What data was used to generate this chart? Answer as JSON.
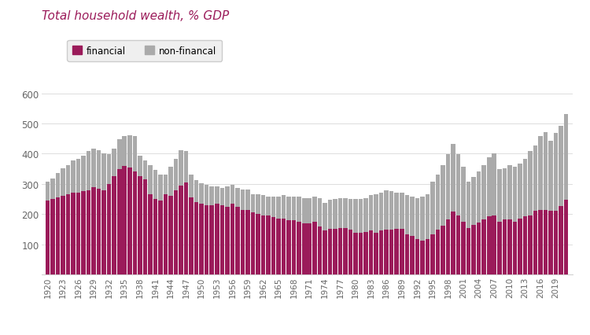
{
  "title": "Total household wealth, % GDP",
  "financial_color": "#9B1B5A",
  "nonfinancial_color": "#AAAAAA",
  "financial_label": "financial",
  "nonfinancial_label": "non-financal",
  "years": [
    1920,
    1921,
    1922,
    1923,
    1924,
    1925,
    1926,
    1927,
    1928,
    1929,
    1930,
    1931,
    1932,
    1933,
    1934,
    1935,
    1936,
    1937,
    1938,
    1939,
    1940,
    1941,
    1942,
    1943,
    1944,
    1945,
    1946,
    1947,
    1948,
    1949,
    1950,
    1951,
    1952,
    1953,
    1954,
    1955,
    1956,
    1957,
    1958,
    1959,
    1960,
    1961,
    1962,
    1963,
    1964,
    1965,
    1966,
    1967,
    1968,
    1969,
    1970,
    1971,
    1972,
    1973,
    1974,
    1975,
    1976,
    1977,
    1978,
    1979,
    1980,
    1981,
    1982,
    1983,
    1984,
    1985,
    1986,
    1987,
    1988,
    1989,
    1990,
    1991,
    1992,
    1993,
    1994,
    1995,
    1996,
    1997,
    1998,
    1999,
    2000,
    2001,
    2002,
    2003,
    2004,
    2005,
    2006,
    2007,
    2008,
    2009,
    2010,
    2011,
    2012,
    2013,
    2014,
    2015,
    2016,
    2017,
    2018,
    2019,
    2020,
    2021
  ],
  "financial": [
    245,
    250,
    255,
    260,
    265,
    270,
    270,
    275,
    280,
    290,
    285,
    280,
    300,
    325,
    350,
    360,
    355,
    340,
    325,
    315,
    265,
    250,
    245,
    265,
    260,
    280,
    295,
    305,
    255,
    240,
    235,
    230,
    230,
    235,
    230,
    225,
    235,
    225,
    215,
    215,
    205,
    200,
    195,
    195,
    190,
    185,
    185,
    180,
    180,
    175,
    170,
    170,
    175,
    160,
    145,
    150,
    150,
    155,
    155,
    148,
    138,
    138,
    140,
    145,
    138,
    145,
    148,
    148,
    152,
    152,
    132,
    127,
    118,
    112,
    118,
    132,
    148,
    162,
    182,
    208,
    195,
    175,
    155,
    163,
    172,
    182,
    192,
    196,
    176,
    182,
    182,
    176,
    186,
    192,
    196,
    210,
    215,
    215,
    210,
    212,
    226,
    248
  ],
  "total": [
    308,
    318,
    335,
    352,
    362,
    378,
    382,
    392,
    408,
    418,
    412,
    402,
    398,
    418,
    448,
    458,
    462,
    458,
    392,
    378,
    362,
    347,
    332,
    332,
    357,
    382,
    412,
    408,
    332,
    312,
    302,
    297,
    292,
    292,
    287,
    292,
    297,
    287,
    282,
    282,
    267,
    267,
    262,
    257,
    257,
    257,
    262,
    257,
    257,
    257,
    252,
    252,
    257,
    252,
    237,
    247,
    250,
    252,
    252,
    250,
    250,
    250,
    252,
    262,
    267,
    272,
    280,
    275,
    272,
    272,
    262,
    257,
    254,
    257,
    267,
    308,
    332,
    362,
    398,
    432,
    398,
    358,
    308,
    322,
    342,
    362,
    388,
    402,
    348,
    352,
    362,
    358,
    368,
    382,
    408,
    428,
    458,
    472,
    442,
    468,
    492,
    532
  ]
}
